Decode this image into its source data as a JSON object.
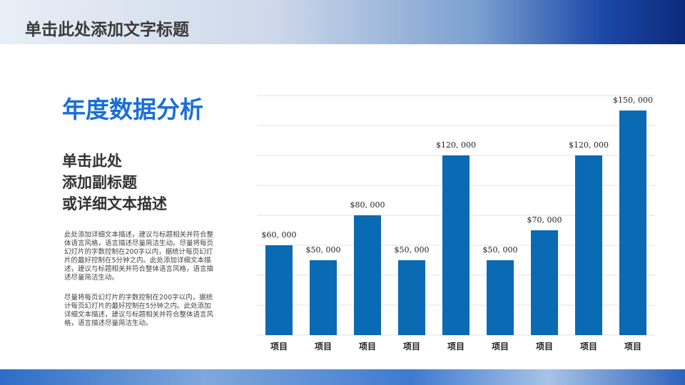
{
  "header": {
    "title": "单击此处添加文字标题"
  },
  "panel": {
    "heading": "年度数据分析",
    "subtitle": [
      "单击此处",
      "添加副标题",
      "或详细文本描述"
    ],
    "paragraphs": [
      [
        "此处添加详细文本描述，建议与标题相关并符合整",
        "体语言风格，语言描述尽量简洁生动。尽量将每页",
        "幻灯片的字数控制在200字以内，据统计每页幻灯",
        "片的最好控制在5分钟之内。此处添加详细文本描",
        "述，建议与标题相关并符合整体语言风格，语言描",
        "述尽量简洁生动。"
      ],
      [
        "尽量将每页幻灯片的字数控制在200字以内，据统",
        "计每页幻灯片的最好控制在5分钟之内。此处添加",
        "详细文本描述，建议与标题相关并符合整体语言风",
        "格，语言描述尽量简洁生动。"
      ]
    ]
  },
  "chart_data": {
    "type": "bar",
    "categories": [
      "项目",
      "项目",
      "项目",
      "项目",
      "项目",
      "项目",
      "项目",
      "项目",
      "项目"
    ],
    "values": [
      60000,
      50000,
      80000,
      50000,
      120000,
      50000,
      70000,
      120000,
      150000
    ],
    "value_labels": [
      "$60, 000",
      "$50, 000",
      "$80, 000",
      "$50, 000",
      "$120, 000",
      "$50, 000",
      "$70, 000",
      "$120, 000",
      "$150, 000"
    ],
    "color": "#0a6ab4",
    "ylim": [
      0,
      160000
    ],
    "yticks": [
      0,
      20000,
      40000,
      60000,
      80000,
      100000,
      120000,
      140000,
      160000
    ],
    "grid": true,
    "tick_labels": false
  }
}
